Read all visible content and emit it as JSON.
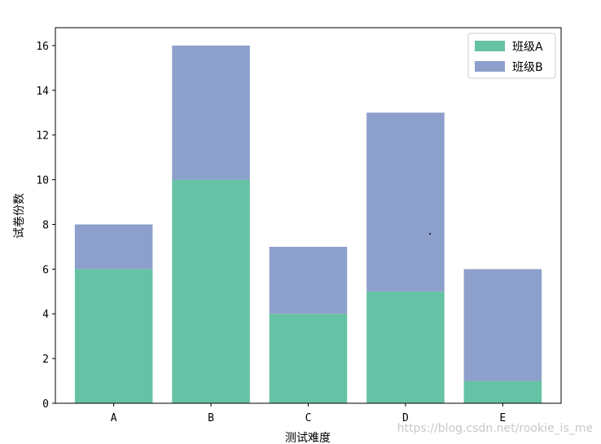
{
  "chart_data": {
    "type": "bar",
    "stacked": true,
    "categories": [
      "A",
      "B",
      "C",
      "D",
      "E"
    ],
    "series": [
      {
        "name": "班级A",
        "values": [
          6,
          10,
          4,
          5,
          1
        ],
        "color": "#66c2a5"
      },
      {
        "name": "班级B",
        "values": [
          2,
          6,
          3,
          8,
          5
        ],
        "color": "#8da0cb"
      }
    ],
    "xlabel": "测试难度",
    "ylabel": "试卷份数",
    "ylim": [
      0,
      16.8
    ],
    "yticks": [
      0,
      2,
      4,
      6,
      8,
      10,
      12,
      14,
      16
    ],
    "grid": false,
    "legend": "top-right"
  },
  "watermark": "https://blog.csdn.net/rookie_is_me"
}
